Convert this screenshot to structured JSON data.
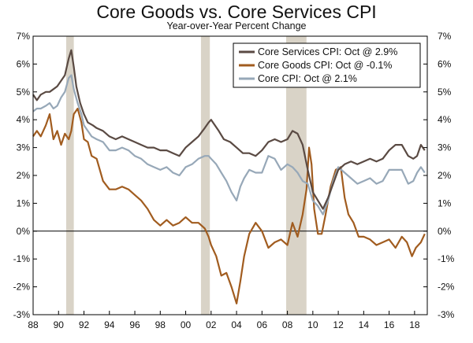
{
  "chart_data": {
    "type": "line",
    "title": "Core Goods vs. Core Services CPI",
    "subtitle": "Year-over-Year Percent Change",
    "xlabel": "",
    "ylabel": "",
    "x_range": [
      1988.0,
      2019.0
    ],
    "ylim": [
      -3,
      7
    ],
    "x_ticks": [
      {
        "value": 1988,
        "label": "88"
      },
      {
        "value": 1990,
        "label": "90"
      },
      {
        "value": 1992,
        "label": "92"
      },
      {
        "value": 1994,
        "label": "94"
      },
      {
        "value": 1996,
        "label": "96"
      },
      {
        "value": 1998,
        "label": "98"
      },
      {
        "value": 2000,
        "label": "00"
      },
      {
        "value": 2002,
        "label": "02"
      },
      {
        "value": 2004,
        "label": "04"
      },
      {
        "value": 2006,
        "label": "06"
      },
      {
        "value": 2008,
        "label": "08"
      },
      {
        "value": 2010,
        "label": "10"
      },
      {
        "value": 2012,
        "label": "12"
      },
      {
        "value": 2014,
        "label": "14"
      },
      {
        "value": 2016,
        "label": "16"
      },
      {
        "value": 2018,
        "label": "18"
      }
    ],
    "y_ticks": [
      {
        "value": 7,
        "label": "7%"
      },
      {
        "value": 6,
        "label": "6%"
      },
      {
        "value": 5,
        "label": "5%"
      },
      {
        "value": 4,
        "label": "4%"
      },
      {
        "value": 3,
        "label": "3%"
      },
      {
        "value": 2,
        "label": "2%"
      },
      {
        "value": 1,
        "label": "1%"
      },
      {
        "value": 0,
        "label": "0%"
      },
      {
        "value": -1,
        "label": "-1%"
      },
      {
        "value": -2,
        "label": "-2%"
      },
      {
        "value": -3,
        "label": "-3%"
      }
    ],
    "recessions": [
      [
        1990.6,
        1991.2
      ],
      [
        2001.2,
        2001.9
      ],
      [
        2007.9,
        2009.5
      ]
    ],
    "legend_position": "top-right",
    "grid": false,
    "series": [
      {
        "name": "Core Services CPI: Oct @ 2.9%",
        "color": "#5a4a43",
        "points": [
          [
            1988.0,
            4.9
          ],
          [
            1988.3,
            4.7
          ],
          [
            1988.6,
            4.9
          ],
          [
            1989.0,
            5.0
          ],
          [
            1989.3,
            5.0
          ],
          [
            1989.6,
            5.1
          ],
          [
            1989.9,
            5.2
          ],
          [
            1990.2,
            5.4
          ],
          [
            1990.5,
            5.6
          ],
          [
            1990.8,
            6.2
          ],
          [
            1991.0,
            6.5
          ],
          [
            1991.2,
            5.9
          ],
          [
            1991.4,
            5.2
          ],
          [
            1991.7,
            4.6
          ],
          [
            1992.0,
            4.2
          ],
          [
            1992.3,
            3.9
          ],
          [
            1992.7,
            3.8
          ],
          [
            1993.0,
            3.7
          ],
          [
            1993.5,
            3.6
          ],
          [
            1994.0,
            3.4
          ],
          [
            1994.5,
            3.3
          ],
          [
            1995.0,
            3.4
          ],
          [
            1995.5,
            3.3
          ],
          [
            1996.0,
            3.2
          ],
          [
            1996.5,
            3.1
          ],
          [
            1997.0,
            3.0
          ],
          [
            1997.5,
            3.0
          ],
          [
            1998.0,
            2.9
          ],
          [
            1998.5,
            2.9
          ],
          [
            1999.0,
            2.8
          ],
          [
            1999.5,
            2.7
          ],
          [
            2000.0,
            3.0
          ],
          [
            2000.5,
            3.2
          ],
          [
            2001.0,
            3.4
          ],
          [
            2001.5,
            3.7
          ],
          [
            2001.8,
            3.9
          ],
          [
            2002.0,
            4.0
          ],
          [
            2002.3,
            3.8
          ],
          [
            2002.6,
            3.6
          ],
          [
            2003.0,
            3.3
          ],
          [
            2003.5,
            3.2
          ],
          [
            2004.0,
            3.0
          ],
          [
            2004.5,
            2.8
          ],
          [
            2005.0,
            2.8
          ],
          [
            2005.5,
            2.7
          ],
          [
            2006.0,
            2.9
          ],
          [
            2006.5,
            3.2
          ],
          [
            2007.0,
            3.3
          ],
          [
            2007.5,
            3.2
          ],
          [
            2008.0,
            3.3
          ],
          [
            2008.4,
            3.6
          ],
          [
            2008.8,
            3.5
          ],
          [
            2009.2,
            3.1
          ],
          [
            2009.6,
            2.2
          ],
          [
            2010.0,
            1.4
          ],
          [
            2010.4,
            1.1
          ],
          [
            2010.8,
            0.8
          ],
          [
            2011.2,
            1.2
          ],
          [
            2011.6,
            1.7
          ],
          [
            2012.0,
            2.2
          ],
          [
            2012.5,
            2.4
          ],
          [
            2013.0,
            2.5
          ],
          [
            2013.5,
            2.4
          ],
          [
            2014.0,
            2.5
          ],
          [
            2014.5,
            2.6
          ],
          [
            2015.0,
            2.5
          ],
          [
            2015.5,
            2.6
          ],
          [
            2016.0,
            2.9
          ],
          [
            2016.5,
            3.1
          ],
          [
            2017.0,
            3.1
          ],
          [
            2017.5,
            2.7
          ],
          [
            2017.9,
            2.6
          ],
          [
            2018.2,
            2.7
          ],
          [
            2018.5,
            3.1
          ],
          [
            2018.8,
            2.9
          ]
        ]
      },
      {
        "name": "Core Goods CPI: Oct @ -0.1%",
        "color": "#a15c1f",
        "points": [
          [
            1988.0,
            3.4
          ],
          [
            1988.3,
            3.6
          ],
          [
            1988.6,
            3.4
          ],
          [
            1989.0,
            3.8
          ],
          [
            1989.3,
            4.2
          ],
          [
            1989.6,
            3.3
          ],
          [
            1989.9,
            3.6
          ],
          [
            1990.2,
            3.1
          ],
          [
            1990.5,
            3.5
          ],
          [
            1990.8,
            3.3
          ],
          [
            1991.0,
            3.6
          ],
          [
            1991.2,
            4.2
          ],
          [
            1991.5,
            4.4
          ],
          [
            1991.8,
            3.9
          ],
          [
            1992.0,
            3.3
          ],
          [
            1992.3,
            3.2
          ],
          [
            1992.6,
            2.7
          ],
          [
            1993.0,
            2.6
          ],
          [
            1993.5,
            1.8
          ],
          [
            1994.0,
            1.5
          ],
          [
            1994.5,
            1.5
          ],
          [
            1995.0,
            1.6
          ],
          [
            1995.5,
            1.5
          ],
          [
            1996.0,
            1.3
          ],
          [
            1996.5,
            1.1
          ],
          [
            1997.0,
            0.8
          ],
          [
            1997.5,
            0.4
          ],
          [
            1998.0,
            0.2
          ],
          [
            1998.5,
            0.4
          ],
          [
            1999.0,
            0.2
          ],
          [
            1999.5,
            0.3
          ],
          [
            2000.0,
            0.5
          ],
          [
            2000.5,
            0.3
          ],
          [
            2001.0,
            0.3
          ],
          [
            2001.5,
            0.1
          ],
          [
            2001.8,
            -0.2
          ],
          [
            2002.0,
            -0.5
          ],
          [
            2002.4,
            -0.9
          ],
          [
            2002.8,
            -1.6
          ],
          [
            2003.2,
            -1.5
          ],
          [
            2003.6,
            -2.0
          ],
          [
            2004.0,
            -2.6
          ],
          [
            2004.3,
            -1.8
          ],
          [
            2004.6,
            -0.9
          ],
          [
            2005.0,
            -0.1
          ],
          [
            2005.5,
            0.3
          ],
          [
            2006.0,
            0.0
          ],
          [
            2006.5,
            -0.6
          ],
          [
            2007.0,
            -0.4
          ],
          [
            2007.5,
            -0.3
          ],
          [
            2008.0,
            -0.5
          ],
          [
            2008.4,
            0.3
          ],
          [
            2008.8,
            -0.2
          ],
          [
            2009.2,
            0.6
          ],
          [
            2009.5,
            1.5
          ],
          [
            2009.7,
            3.0
          ],
          [
            2009.9,
            2.4
          ],
          [
            2010.1,
            0.8
          ],
          [
            2010.4,
            -0.1
          ],
          [
            2010.7,
            -0.1
          ],
          [
            2011.0,
            0.6
          ],
          [
            2011.4,
            1.6
          ],
          [
            2011.8,
            2.2
          ],
          [
            2012.2,
            2.3
          ],
          [
            2012.5,
            1.2
          ],
          [
            2012.8,
            0.6
          ],
          [
            2013.2,
            0.3
          ],
          [
            2013.6,
            -0.2
          ],
          [
            2014.0,
            -0.2
          ],
          [
            2014.5,
            -0.3
          ],
          [
            2015.0,
            -0.5
          ],
          [
            2015.5,
            -0.4
          ],
          [
            2016.0,
            -0.3
          ],
          [
            2016.5,
            -0.6
          ],
          [
            2017.0,
            -0.2
          ],
          [
            2017.4,
            -0.4
          ],
          [
            2017.8,
            -0.9
          ],
          [
            2018.1,
            -0.6
          ],
          [
            2018.5,
            -0.4
          ],
          [
            2018.8,
            -0.1
          ]
        ]
      },
      {
        "name": "Core CPI: Oct @ 2.1%",
        "color": "#97a8b8",
        "points": [
          [
            1988.0,
            4.3
          ],
          [
            1988.3,
            4.4
          ],
          [
            1988.6,
            4.4
          ],
          [
            1989.0,
            4.5
          ],
          [
            1989.3,
            4.6
          ],
          [
            1989.6,
            4.4
          ],
          [
            1989.9,
            4.5
          ],
          [
            1990.2,
            4.8
          ],
          [
            1990.5,
            5.0
          ],
          [
            1990.8,
            5.5
          ],
          [
            1991.0,
            5.6
          ],
          [
            1991.2,
            5.1
          ],
          [
            1991.5,
            4.6
          ],
          [
            1991.8,
            4.2
          ],
          [
            1992.0,
            3.8
          ],
          [
            1992.3,
            3.6
          ],
          [
            1992.6,
            3.4
          ],
          [
            1993.0,
            3.3
          ],
          [
            1993.5,
            3.2
          ],
          [
            1994.0,
            2.9
          ],
          [
            1994.5,
            2.9
          ],
          [
            1995.0,
            3.0
          ],
          [
            1995.5,
            2.9
          ],
          [
            1996.0,
            2.7
          ],
          [
            1996.5,
            2.6
          ],
          [
            1997.0,
            2.4
          ],
          [
            1997.5,
            2.3
          ],
          [
            1998.0,
            2.2
          ],
          [
            1998.5,
            2.3
          ],
          [
            1999.0,
            2.1
          ],
          [
            1999.5,
            2.0
          ],
          [
            2000.0,
            2.3
          ],
          [
            2000.5,
            2.4
          ],
          [
            2001.0,
            2.6
          ],
          [
            2001.5,
            2.7
          ],
          [
            2001.8,
            2.7
          ],
          [
            2002.0,
            2.6
          ],
          [
            2002.4,
            2.4
          ],
          [
            2002.8,
            2.1
          ],
          [
            2003.2,
            1.8
          ],
          [
            2003.6,
            1.4
          ],
          [
            2004.0,
            1.1
          ],
          [
            2004.3,
            1.6
          ],
          [
            2004.6,
            1.9
          ],
          [
            2005.0,
            2.2
          ],
          [
            2005.5,
            2.1
          ],
          [
            2006.0,
            2.1
          ],
          [
            2006.5,
            2.7
          ],
          [
            2007.0,
            2.6
          ],
          [
            2007.5,
            2.2
          ],
          [
            2008.0,
            2.4
          ],
          [
            2008.4,
            2.3
          ],
          [
            2008.8,
            2.1
          ],
          [
            2009.2,
            1.8
          ],
          [
            2009.6,
            1.7
          ],
          [
            2010.0,
            1.1
          ],
          [
            2010.4,
            0.9
          ],
          [
            2010.8,
            0.6
          ],
          [
            2011.2,
            1.1
          ],
          [
            2011.6,
            1.8
          ],
          [
            2012.0,
            2.3
          ],
          [
            2012.5,
            2.1
          ],
          [
            2013.0,
            1.9
          ],
          [
            2013.5,
            1.7
          ],
          [
            2014.0,
            1.8
          ],
          [
            2014.5,
            1.9
          ],
          [
            2015.0,
            1.7
          ],
          [
            2015.5,
            1.8
          ],
          [
            2016.0,
            2.2
          ],
          [
            2016.5,
            2.2
          ],
          [
            2017.0,
            2.2
          ],
          [
            2017.5,
            1.7
          ],
          [
            2017.9,
            1.8
          ],
          [
            2018.2,
            2.1
          ],
          [
            2018.5,
            2.3
          ],
          [
            2018.8,
            2.1
          ]
        ]
      }
    ]
  }
}
